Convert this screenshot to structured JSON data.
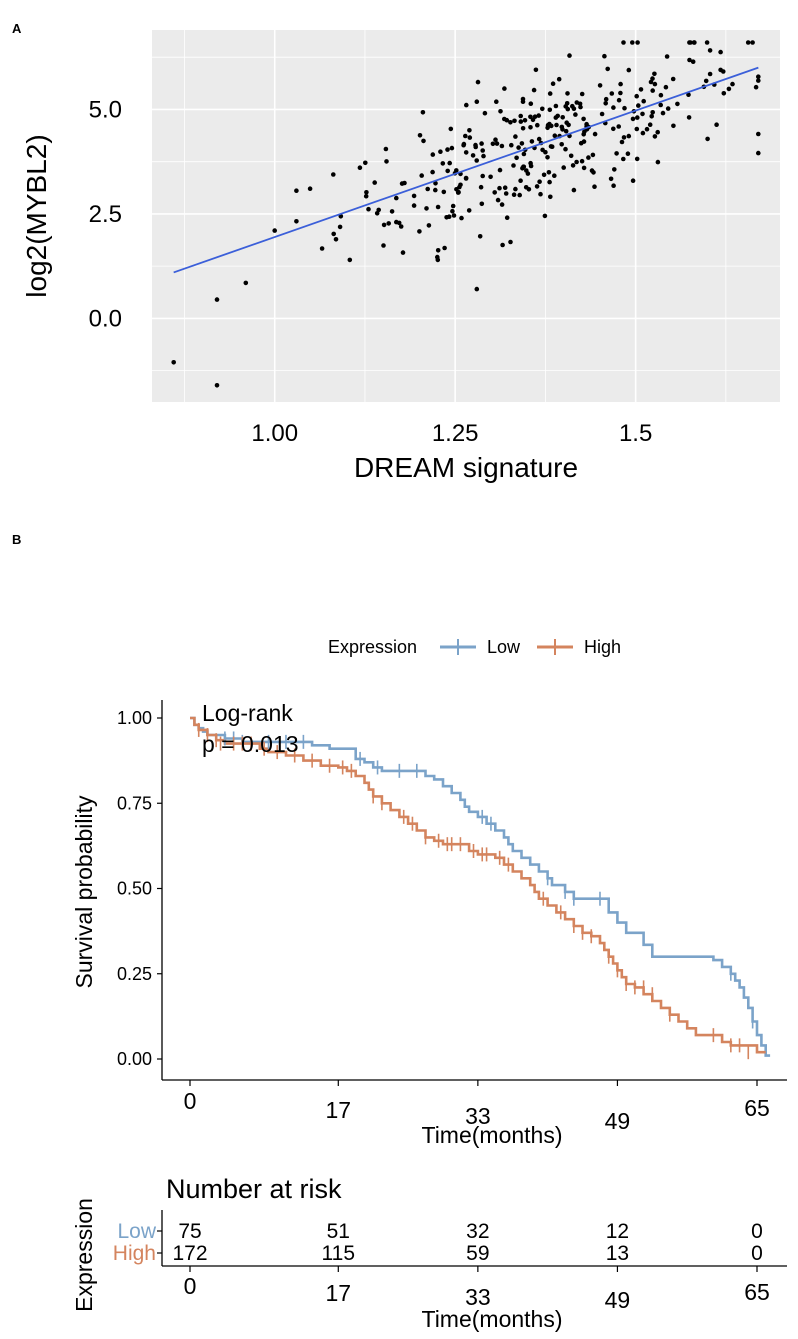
{
  "figure": {
    "label_a": "A",
    "label_b": "B"
  },
  "colors": {
    "low": "#7ba3c9",
    "high": "#d4845e",
    "fit": "#3b5fd9",
    "panel_bg": "#ebebeb",
    "grid": "#ffffff"
  },
  "chart_data": [
    {
      "type": "scatter",
      "title": "",
      "xlabel": "DREAM signature",
      "ylabel": "log2(MYBL2)",
      "xlim": [
        0.83,
        1.7
      ],
      "ylim": [
        -2.0,
        6.9
      ],
      "x_ticks": [
        1.0,
        1.25,
        1.5
      ],
      "x_tick_labels": [
        "1.00",
        "1.25",
        "1.5"
      ],
      "y_ticks": [
        0.0,
        2.5,
        5.0
      ],
      "y_tick_labels": [
        "0.0",
        "2.5",
        "5.0"
      ],
      "grid": true,
      "fit_line": {
        "x": [
          0.86,
          1.67
        ],
        "y": [
          1.1,
          6.0
        ]
      },
      "outliers": [
        [
          0.86,
          -1.05
        ],
        [
          0.92,
          -1.6
        ],
        [
          0.92,
          0.45
        ],
        [
          0.96,
          0.85
        ],
        [
          1.0,
          2.1
        ],
        [
          1.28,
          0.7
        ]
      ],
      "cloud": {
        "n": 320,
        "x_center": 1.37,
        "x_sd": 0.14,
        "x_range": [
          1.03,
          1.67
        ],
        "slope": 6.05,
        "intercept": -4.1,
        "noise_sd": 0.8,
        "y_range": [
          1.4,
          6.6
        ]
      }
    },
    {
      "type": "line",
      "subtype": "kaplan-meier",
      "xlabel": "Time(months)",
      "ylabel": "Survival probability",
      "xlim": [
        0,
        65
      ],
      "ylim": [
        0,
        1
      ],
      "x_ticks": [
        0,
        17,
        33,
        49,
        65
      ],
      "y_ticks": [
        0,
        0.25,
        0.5,
        0.75,
        1.0
      ],
      "y_tick_labels": [
        "0.00",
        "0.25",
        "0.50",
        "0.75",
        "1.00"
      ],
      "legend": {
        "title": "Expression",
        "position": "top",
        "entries": [
          "Low",
          "High"
        ]
      },
      "annotation": [
        "Log-rank",
        "p = 0.013"
      ],
      "series": [
        {
          "name": "Low",
          "steps": [
            [
              0,
              1.0
            ],
            [
              0.5,
              0.98
            ],
            [
              1,
              0.97
            ],
            [
              1.5,
              0.96
            ],
            [
              2,
              0.95
            ],
            [
              4,
              0.94
            ],
            [
              6,
              0.93
            ],
            [
              14,
              0.92
            ],
            [
              16,
              0.91
            ],
            [
              19,
              0.88
            ],
            [
              20,
              0.87
            ],
            [
              21,
              0.855
            ],
            [
              22,
              0.845
            ],
            [
              27,
              0.83
            ],
            [
              28,
              0.82
            ],
            [
              29,
              0.8
            ],
            [
              30,
              0.78
            ],
            [
              31,
              0.76
            ],
            [
              31.5,
              0.74
            ],
            [
              32,
              0.725
            ],
            [
              33,
              0.71
            ],
            [
              34,
              0.69
            ],
            [
              35,
              0.67
            ],
            [
              36,
              0.65
            ],
            [
              36.5,
              0.63
            ],
            [
              37,
              0.61
            ],
            [
              38,
              0.59
            ],
            [
              39,
              0.57
            ],
            [
              40,
              0.55
            ],
            [
              41,
              0.53
            ],
            [
              41.5,
              0.51
            ],
            [
              43,
              0.49
            ],
            [
              44,
              0.47
            ],
            [
              48,
              0.43
            ],
            [
              49,
              0.4
            ],
            [
              50,
              0.37
            ],
            [
              52,
              0.335
            ],
            [
              53,
              0.3
            ],
            [
              60,
              0.29
            ],
            [
              61,
              0.27
            ],
            [
              62,
              0.25
            ],
            [
              62.5,
              0.23
            ],
            [
              63,
              0.21
            ],
            [
              63.5,
              0.18
            ],
            [
              64,
              0.15
            ],
            [
              64.5,
              0.11
            ],
            [
              65,
              0.07
            ],
            [
              65.5,
              0.04
            ],
            [
              66,
              0.01
            ]
          ],
          "end": 66.5,
          "censors": [
            [
              4,
              0.94
            ],
            [
              5,
              0.94
            ],
            [
              6,
              0.93
            ],
            [
              9,
              0.93
            ],
            [
              11,
              0.93
            ],
            [
              13,
              0.93
            ],
            [
              19.5,
              0.88
            ],
            [
              21.5,
              0.855
            ],
            [
              24,
              0.845
            ],
            [
              26,
              0.845
            ],
            [
              33.5,
              0.71
            ],
            [
              34.5,
              0.69
            ],
            [
              41,
              0.53
            ],
            [
              43,
              0.49
            ],
            [
              44,
              0.47
            ],
            [
              47,
              0.47
            ],
            [
              62,
              0.25
            ],
            [
              64.5,
              0.11
            ]
          ]
        },
        {
          "name": "High",
          "steps": [
            [
              0,
              1.0
            ],
            [
              0.5,
              0.98
            ],
            [
              1,
              0.965
            ],
            [
              2,
              0.95
            ],
            [
              3,
              0.935
            ],
            [
              4,
              0.925
            ],
            [
              8,
              0.91
            ],
            [
              9,
              0.9
            ],
            [
              11,
              0.89
            ],
            [
              13,
              0.875
            ],
            [
              15,
              0.86
            ],
            [
              17,
              0.855
            ],
            [
              18,
              0.845
            ],
            [
              19,
              0.83
            ],
            [
              20,
              0.81
            ],
            [
              20.5,
              0.79
            ],
            [
              21,
              0.77
            ],
            [
              22,
              0.75
            ],
            [
              23,
              0.73
            ],
            [
              24,
              0.71
            ],
            [
              25,
              0.69
            ],
            [
              26,
              0.67
            ],
            [
              27,
              0.65
            ],
            [
              28,
              0.64
            ],
            [
              29,
              0.63
            ],
            [
              32,
              0.61
            ],
            [
              33,
              0.6
            ],
            [
              35,
              0.59
            ],
            [
              36,
              0.57
            ],
            [
              37,
              0.55
            ],
            [
              38,
              0.53
            ],
            [
              39,
              0.51
            ],
            [
              39.5,
              0.49
            ],
            [
              40,
              0.47
            ],
            [
              41,
              0.45
            ],
            [
              42,
              0.43
            ],
            [
              43,
              0.41
            ],
            [
              44,
              0.39
            ],
            [
              45,
              0.37
            ],
            [
              46,
              0.36
            ],
            [
              47,
              0.34
            ],
            [
              47.5,
              0.32
            ],
            [
              48,
              0.3
            ],
            [
              48.5,
              0.28
            ],
            [
              49,
              0.26
            ],
            [
              49.5,
              0.24
            ],
            [
              50,
              0.22
            ],
            [
              51,
              0.21
            ],
            [
              52,
              0.19
            ],
            [
              53,
              0.17
            ],
            [
              54,
              0.15
            ],
            [
              55,
              0.13
            ],
            [
              56,
              0.11
            ],
            [
              57,
              0.09
            ],
            [
              58,
              0.07
            ],
            [
              61,
              0.05
            ],
            [
              62,
              0.04
            ],
            [
              65,
              0.02
            ]
          ],
          "end": 66,
          "censors": [
            [
              1,
              0.965
            ],
            [
              2,
              0.95
            ],
            [
              3,
              0.935
            ],
            [
              3.5,
              0.925
            ],
            [
              5,
              0.925
            ],
            [
              6,
              0.925
            ],
            [
              7,
              0.925
            ],
            [
              8.5,
              0.91
            ],
            [
              10,
              0.9
            ],
            [
              12,
              0.89
            ],
            [
              14,
              0.875
            ],
            [
              16,
              0.86
            ],
            [
              17.5,
              0.855
            ],
            [
              18.5,
              0.845
            ],
            [
              21,
              0.77
            ],
            [
              22,
              0.75
            ],
            [
              24.5,
              0.71
            ],
            [
              25.5,
              0.69
            ],
            [
              27,
              0.65
            ],
            [
              28.5,
              0.64
            ],
            [
              29.5,
              0.63
            ],
            [
              30,
              0.63
            ],
            [
              31,
              0.63
            ],
            [
              32.5,
              0.61
            ],
            [
              33.5,
              0.6
            ],
            [
              34,
              0.6
            ],
            [
              35.5,
              0.59
            ],
            [
              36.5,
              0.57
            ],
            [
              40.5,
              0.47
            ],
            [
              42.5,
              0.43
            ],
            [
              44,
              0.39
            ],
            [
              45,
              0.37
            ],
            [
              46,
              0.36
            ],
            [
              48,
              0.3
            ],
            [
              49,
              0.26
            ],
            [
              50,
              0.22
            ],
            [
              51,
              0.21
            ],
            [
              52,
              0.21
            ],
            [
              53,
              0.19
            ],
            [
              55,
              0.13
            ],
            [
              60,
              0.07
            ],
            [
              62,
              0.04
            ],
            [
              63,
              0.04
            ],
            [
              64,
              0.02
            ]
          ]
        }
      ]
    },
    {
      "type": "table",
      "title": "Number at risk",
      "row_axis_title": "Expression",
      "xlabel": "Time(months)",
      "times": [
        0,
        17,
        33,
        49,
        65
      ],
      "rows": [
        {
          "name": "Low",
          "values": [
            "75",
            "51",
            "32",
            "12",
            "0"
          ]
        },
        {
          "name": "High",
          "values": [
            "172",
            "115",
            "59",
            "13",
            "0"
          ]
        }
      ]
    }
  ]
}
